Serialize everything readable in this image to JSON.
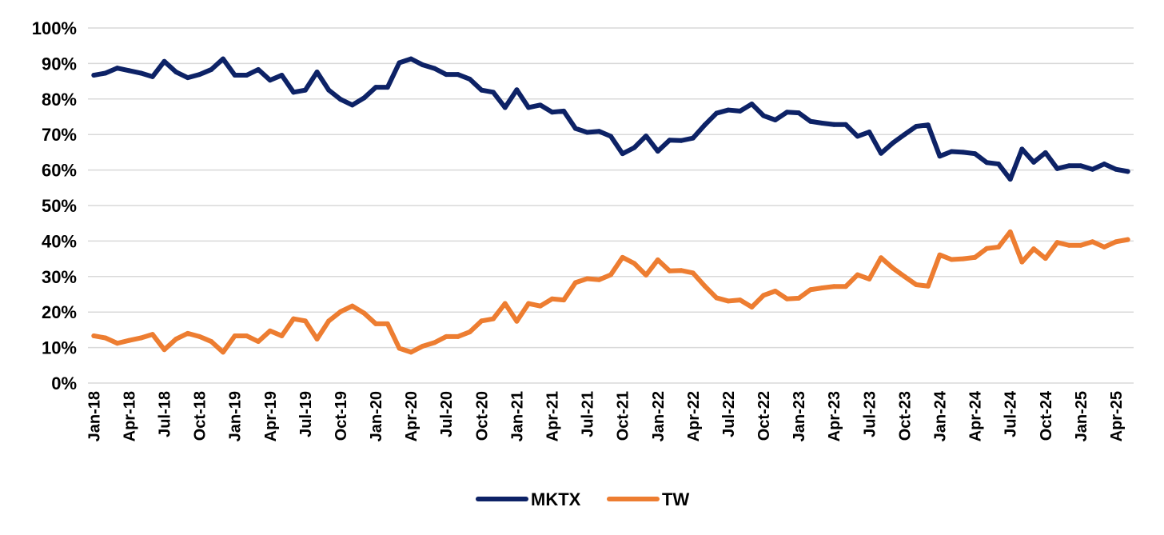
{
  "chart_data": {
    "type": "line",
    "title": "",
    "xlabel": "",
    "ylabel": "",
    "ylim": [
      0,
      100
    ],
    "yticks": [
      "0%",
      "10%",
      "20%",
      "30%",
      "40%",
      "50%",
      "60%",
      "70%",
      "80%",
      "90%",
      "100%"
    ],
    "grid": true,
    "legend_position": "bottom",
    "x_tick_labels": [
      "Jan-18",
      "Apr-18",
      "Jul-18",
      "Oct-18",
      "Jan-19",
      "Apr-19",
      "Jul-19",
      "Oct-19",
      "Jan-20",
      "Apr-20",
      "Jul-20",
      "Oct-20",
      "Jan-21",
      "Apr-21",
      "Jul-21",
      "Oct-21",
      "Jan-22",
      "Apr-22",
      "Jul-22",
      "Oct-22",
      "Jan-23",
      "Apr-23",
      "Jul-23",
      "Oct-23",
      "Jan-24",
      "Apr-24",
      "Jul-24",
      "Oct-24",
      "Jan-25",
      "Apr-25"
    ],
    "x": [
      "Jan-18",
      "Feb-18",
      "Mar-18",
      "Apr-18",
      "May-18",
      "Jun-18",
      "Jul-18",
      "Aug-18",
      "Sep-18",
      "Oct-18",
      "Nov-18",
      "Dec-18",
      "Jan-19",
      "Feb-19",
      "Mar-19",
      "Apr-19",
      "May-19",
      "Jun-19",
      "Jul-19",
      "Aug-19",
      "Sep-19",
      "Oct-19",
      "Nov-19",
      "Dec-19",
      "Jan-20",
      "Feb-20",
      "Mar-20",
      "Apr-20",
      "May-20",
      "Jun-20",
      "Jul-20",
      "Aug-20",
      "Sep-20",
      "Oct-20",
      "Nov-20",
      "Dec-20",
      "Jan-21",
      "Feb-21",
      "Mar-21",
      "Apr-21",
      "May-21",
      "Jun-21",
      "Jul-21",
      "Aug-21",
      "Sep-21",
      "Oct-21",
      "Nov-21",
      "Dec-21",
      "Jan-22",
      "Feb-22",
      "Mar-22",
      "Apr-22",
      "May-22",
      "Jun-22",
      "Jul-22",
      "Aug-22",
      "Sep-22",
      "Oct-22",
      "Nov-22",
      "Dec-22",
      "Jan-23",
      "Feb-23",
      "Mar-23",
      "Apr-23",
      "May-23",
      "Jun-23",
      "Jul-23",
      "Aug-23",
      "Sep-23",
      "Oct-23",
      "Nov-23",
      "Dec-23",
      "Jan-24",
      "Feb-24",
      "Mar-24",
      "Apr-24",
      "May-24",
      "Jun-24",
      "Jul-24",
      "Aug-24",
      "Sep-24",
      "Oct-24",
      "Nov-24",
      "Dec-24",
      "Jan-25",
      "Feb-25",
      "Mar-25",
      "Apr-25",
      "May-25"
    ],
    "series": [
      {
        "name": "MKTX",
        "color": "#0d2266",
        "values": [
          86.7,
          87.3,
          88.7,
          88.0,
          87.3,
          86.3,
          90.6,
          87.6,
          86.0,
          86.9,
          88.3,
          91.3,
          86.7,
          86.7,
          88.3,
          85.3,
          86.7,
          81.9,
          82.5,
          87.6,
          82.5,
          79.9,
          78.3,
          80.3,
          83.3,
          83.3,
          90.2,
          91.3,
          89.6,
          88.6,
          86.9,
          86.9,
          85.6,
          82.5,
          81.9,
          77.6,
          82.6,
          77.6,
          78.3,
          76.3,
          76.6,
          71.7,
          70.6,
          70.9,
          69.5,
          64.6,
          66.3,
          69.6,
          65.3,
          68.4,
          68.3,
          69.0,
          72.7,
          76.0,
          76.9,
          76.6,
          78.6,
          75.3,
          74.1,
          76.3,
          76.1,
          73.7,
          73.2,
          72.8,
          72.8,
          69.5,
          70.7,
          64.7,
          67.6,
          70.0,
          72.3,
          72.7,
          63.9,
          65.2,
          65.0,
          64.6,
          62.1,
          61.7,
          57.4,
          65.9,
          62.2,
          64.9,
          60.4,
          61.2,
          61.2,
          60.2,
          61.7,
          60.2,
          59.6
        ]
      },
      {
        "name": "TW",
        "color": "#ed7d31",
        "values": [
          13.3,
          12.7,
          11.2,
          12.0,
          12.7,
          13.7,
          9.4,
          12.4,
          14.0,
          13.1,
          11.7,
          8.7,
          13.3,
          13.3,
          11.7,
          14.7,
          13.3,
          18.1,
          17.5,
          12.4,
          17.5,
          20.1,
          21.7,
          19.7,
          16.7,
          16.7,
          9.8,
          8.7,
          10.4,
          11.4,
          13.1,
          13.1,
          14.4,
          17.5,
          18.1,
          22.4,
          17.4,
          22.4,
          21.7,
          23.7,
          23.4,
          28.3,
          29.4,
          29.1,
          30.5,
          35.4,
          33.7,
          30.4,
          34.7,
          31.6,
          31.7,
          31.0,
          27.3,
          24.0,
          23.1,
          23.4,
          21.4,
          24.7,
          25.9,
          23.7,
          23.9,
          26.3,
          26.8,
          27.2,
          27.2,
          30.5,
          29.3,
          35.3,
          32.4,
          30.0,
          27.7,
          27.3,
          36.1,
          34.8,
          35.0,
          35.4,
          37.9,
          38.3,
          42.6,
          34.1,
          37.8,
          35.1,
          39.6,
          38.8,
          38.8,
          39.8,
          38.3,
          39.8,
          40.4
        ]
      }
    ]
  }
}
